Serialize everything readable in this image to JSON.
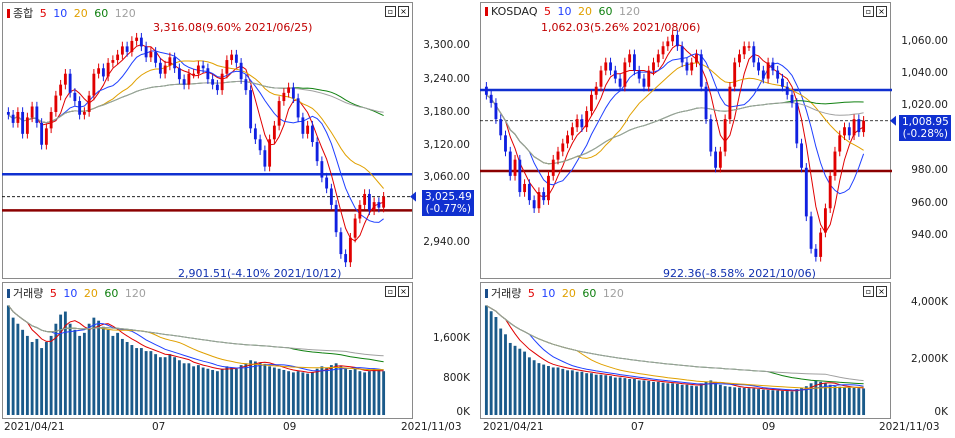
{
  "left": {
    "price_title": "종합",
    "volume_title": "거래량",
    "ma": [
      "5",
      "10",
      "20",
      "60",
      "120"
    ],
    "ma_colors": [
      "#e00000",
      "#2040ff",
      "#e0a000",
      "#108010",
      "#a0a0a0"
    ],
    "price_ticks": [
      "3,300.00",
      "3,240.00",
      "3,180.00",
      "3,120.00",
      "3,060.00",
      "2,940.00"
    ],
    "volume_ticks": [
      "1,600K",
      "800K",
      "0K"
    ],
    "last_value": "3,025.49",
    "last_change": "(-0.77%)",
    "high_note": "3,316.08(9.60% 2021/06/25)",
    "low_note": "2,901.51(-4.10% 2021/10/12)",
    "x_ticks": [
      "2021/04/21",
      "07",
      "09",
      "2021/11/03"
    ]
  },
  "right": {
    "price_title": "KOSDAQ",
    "volume_title": "거래량",
    "ma": [
      "5",
      "10",
      "20",
      "60",
      "120"
    ],
    "price_ticks": [
      "1,060.00",
      "1,040.00",
      "1,020.00",
      "980.00",
      "960.00",
      "940.00"
    ],
    "volume_ticks": [
      "4,000K",
      "2,000K",
      "0K"
    ],
    "last_value": "1,008.95",
    "last_change": "(-0.28%)",
    "high_note": "1,062.03(5.26% 2021/08/06)",
    "low_note": "922.36(-8.58% 2021/10/06)",
    "x_ticks": [
      "2021/04/21",
      "07",
      "09",
      "2021/11/03"
    ]
  },
  "chart_data": [
    {
      "type": "candlestick",
      "title": "종합",
      "ylim": [
        2900,
        3330
      ],
      "reference_lines": [
        3066,
        3000
      ],
      "series_close": [
        3175,
        3160,
        3180,
        3140,
        3170,
        3190,
        3160,
        3120,
        3150,
        3180,
        3210,
        3230,
        3250,
        3215,
        3200,
        3175,
        3180,
        3210,
        3250,
        3260,
        3245,
        3270,
        3275,
        3285,
        3300,
        3290,
        3310,
        3316,
        3300,
        3280,
        3290,
        3270,
        3250,
        3265,
        3280,
        3260,
        3240,
        3230,
        3250,
        3250,
        3265,
        3260,
        3240,
        3230,
        3220,
        3250,
        3275,
        3285,
        3270,
        3240,
        3220,
        3150,
        3130,
        3110,
        3080,
        3130,
        3155,
        3200,
        3215,
        3225,
        3205,
        3170,
        3140,
        3155,
        3125,
        3090,
        3060,
        3040,
        3010,
        2960,
        2920,
        2905,
        2950,
        2985,
        3010,
        3030,
        3000,
        3015,
        3005,
        3025
      ],
      "volume": [
        1800,
        1600,
        1500,
        1400,
        1300,
        1200,
        1250,
        1100,
        1200,
        1300,
        1500,
        1650,
        1700,
        1500,
        1400,
        1300,
        1350,
        1500,
        1600,
        1550,
        1450,
        1400,
        1300,
        1350,
        1250,
        1200,
        1150,
        1100,
        1100,
        1050,
        1050,
        1000,
        950,
        950,
        1000,
        950,
        900,
        850,
        850,
        800,
        820,
        780,
        760,
        740,
        720,
        760,
        800,
        780,
        760,
        820,
        850,
        900,
        880,
        860,
        840,
        800,
        780,
        760,
        740,
        720,
        700,
        720,
        700,
        680,
        700,
        760,
        800,
        780,
        820,
        850,
        800,
        760,
        740,
        760,
        720,
        700,
        720,
        760,
        740,
        720
      ]
    },
    {
      "type": "candlestick",
      "title": "KOSDAQ",
      "ylim": [
        920,
        1065
      ],
      "reference_lines": [
        1028,
        978
      ],
      "series_close": [
        1025,
        1020,
        1010,
        1000,
        990,
        975,
        985,
        965,
        970,
        960,
        955,
        965,
        960,
        975,
        985,
        990,
        995,
        1000,
        1005,
        1010,
        1005,
        1015,
        1025,
        1030,
        1040,
        1045,
        1040,
        1035,
        1030,
        1045,
        1050,
        1040,
        1035,
        1030,
        1040,
        1045,
        1050,
        1055,
        1058,
        1062,
        1055,
        1045,
        1040,
        1045,
        1050,
        1030,
        1010,
        990,
        980,
        990,
        1010,
        1030,
        1045,
        1050,
        1055,
        1055,
        1045,
        1040,
        1035,
        1045,
        1040,
        1035,
        1030,
        1025,
        1020,
        995,
        980,
        950,
        930,
        925,
        940,
        955,
        975,
        990,
        1000,
        1005,
        1000,
        1010,
        1002,
        1009
      ],
      "volume": [
        3800,
        3600,
        3400,
        3000,
        2800,
        2500,
        2400,
        2300,
        2200,
        2000,
        1900,
        1800,
        1750,
        1700,
        1650,
        1650,
        1600,
        1550,
        1550,
        1500,
        1500,
        1450,
        1450,
        1400,
        1400,
        1380,
        1350,
        1300,
        1300,
        1280,
        1250,
        1250,
        1200,
        1200,
        1180,
        1150,
        1150,
        1120,
        1100,
        1100,
        1080,
        1050,
        1050,
        1020,
        1000,
        1100,
        1150,
        1200,
        1150,
        1050,
        1000,
        980,
        960,
        950,
        940,
        930,
        920,
        900,
        880,
        870,
        860,
        850,
        840,
        830,
        820,
        900,
        950,
        1000,
        1100,
        1200,
        1150,
        1100,
        1050,
        1000,
        980,
        960,
        950,
        940,
        930,
        920
      ]
    }
  ]
}
